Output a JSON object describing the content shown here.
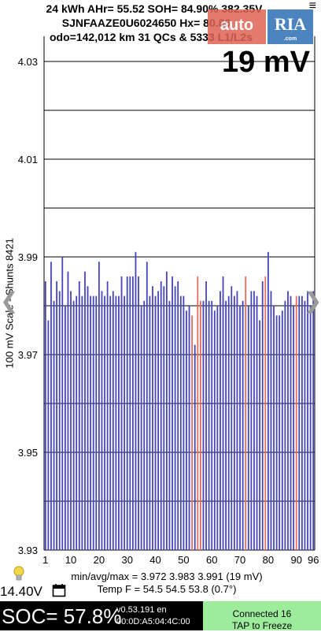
{
  "header": {
    "line1": "24 kWh  AHr= 55.52 SOH= 84.90% 382.35V",
    "line2": "SJNFAAZE0U6024650   Hx= 80.86",
    "line3": "odo=142,012 km 31 QCs & 5333 L1/L2s"
  },
  "watermark": {
    "left": "auto",
    "right": "RIA",
    "sub": ".com"
  },
  "cell_spread": "19 mV",
  "chart_data": {
    "type": "bar",
    "ylabel": "100 mV Scale - Shunts 8421",
    "ylim": [
      3.93,
      4.03
    ],
    "yticks": [
      3.93,
      3.95,
      3.97,
      3.99,
      4.01,
      4.03
    ],
    "xticks": [
      1,
      10,
      20,
      30,
      40,
      50,
      60,
      70,
      80,
      90,
      96
    ],
    "grid": true,
    "colors": {
      "normal": "#4444bb",
      "shunt": "#e56a5e"
    },
    "x": [
      1,
      2,
      3,
      4,
      5,
      6,
      7,
      8,
      9,
      10,
      11,
      12,
      13,
      14,
      15,
      16,
      17,
      18,
      19,
      20,
      21,
      22,
      23,
      24,
      25,
      26,
      27,
      28,
      29,
      30,
      31,
      32,
      33,
      34,
      35,
      36,
      37,
      38,
      39,
      40,
      41,
      42,
      43,
      44,
      45,
      46,
      47,
      48,
      49,
      50,
      51,
      52,
      53,
      54,
      55,
      56,
      57,
      58,
      59,
      60,
      61,
      62,
      63,
      64,
      65,
      66,
      67,
      68,
      69,
      70,
      71,
      72,
      73,
      74,
      75,
      76,
      77,
      78,
      79,
      80,
      81,
      82,
      83,
      84,
      85,
      86,
      87,
      88,
      89,
      90,
      91,
      92,
      93,
      94,
      95,
      96
    ],
    "values": [
      3.985,
      3.977,
      3.989,
      3.981,
      3.985,
      3.983,
      3.99,
      3.98,
      3.987,
      3.983,
      3.981,
      3.982,
      3.985,
      3.982,
      3.987,
      3.984,
      3.982,
      3.982,
      3.982,
      3.989,
      3.983,
      3.982,
      3.985,
      3.982,
      3.983,
      3.982,
      3.982,
      3.986,
      3.982,
      3.986,
      3.986,
      3.986,
      3.991,
      3.986,
      3.98,
      3.981,
      3.989,
      3.982,
      3.984,
      3.982,
      3.983,
      3.985,
      3.984,
      3.987,
      3.981,
      3.986,
      3.984,
      3.985,
      3.982,
      3.982,
      3.979,
      3.98,
      3.978,
      3.972,
      3.986,
      3.981,
      3.981,
      3.985,
      3.981,
      3.981,
      3.979,
      3.98,
      3.983,
      3.986,
      3.981,
      3.982,
      3.984,
      3.982,
      3.983,
      3.98,
      3.981,
      3.986,
      3.98,
      3.983,
      3.983,
      3.982,
      3.977,
      3.985,
      3.986,
      3.991,
      3.983,
      3.98,
      3.978,
      3.978,
      3.979,
      3.981,
      3.983,
      3.982,
      3.98,
      3.982,
      3.982,
      3.982,
      3.981,
      3.983,
      3.98,
      3.983
    ],
    "shunts": [
      53,
      55,
      56,
      72,
      79,
      90
    ]
  },
  "stats": {
    "line1": "min/avg/max = 3.972 3.983 3.991  (19 mV)",
    "line2": "Temp F = 54.5  54.5  53.8  (0.7°)"
  },
  "aux_voltage": "14.40V",
  "footer": {
    "soc": "SOC= 57.8%",
    "version": "v0.53.191 en",
    "mac": "00:0D:A5:04:4C:00",
    "connection_line1": "Connected 16",
    "connection_line2": "TAP to Freeze"
  },
  "icons": [
    "menu-icon",
    "chevron-left-icon",
    "chevron-right-icon",
    "lightbulb-icon",
    "calendar-icon"
  ]
}
